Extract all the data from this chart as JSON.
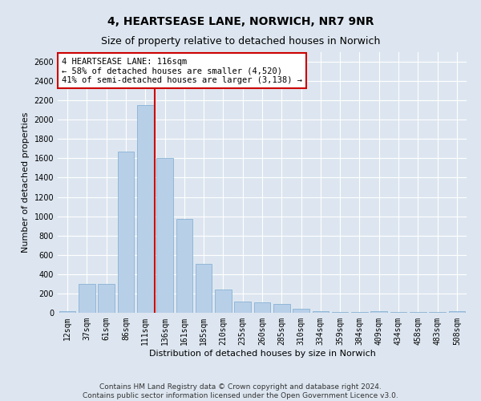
{
  "title": "4, HEARTSEASE LANE, NORWICH, NR7 9NR",
  "subtitle": "Size of property relative to detached houses in Norwich",
  "xlabel": "Distribution of detached houses by size in Norwich",
  "ylabel": "Number of detached properties",
  "categories": [
    "12sqm",
    "37sqm",
    "61sqm",
    "86sqm",
    "111sqm",
    "136sqm",
    "161sqm",
    "185sqm",
    "210sqm",
    "235sqm",
    "260sqm",
    "285sqm",
    "310sqm",
    "334sqm",
    "359sqm",
    "384sqm",
    "409sqm",
    "434sqm",
    "458sqm",
    "483sqm",
    "508sqm"
  ],
  "values": [
    20,
    300,
    300,
    1670,
    2150,
    1600,
    970,
    510,
    245,
    120,
    110,
    95,
    40,
    15,
    10,
    8,
    15,
    8,
    5,
    5,
    20
  ],
  "bar_color": "#b8cfe8",
  "bar_edge_color": "#7aaad0",
  "background_color": "#dde6f0",
  "grid_color": "#ffffff",
  "annotation_box_color": "#ffffff",
  "annotation_box_edge": "#cc0000",
  "vline_color": "#cc0000",
  "vline_x_index": 4,
  "vline_x_offset": 0.5,
  "annotation_line1": "4 HEARTSEASE LANE: 116sqm",
  "annotation_line2": "← 58% of detached houses are smaller (4,520)",
  "annotation_line3": "41% of semi-detached houses are larger (3,138) →",
  "footer1": "Contains HM Land Registry data © Crown copyright and database right 2024.",
  "footer2": "Contains public sector information licensed under the Open Government Licence v3.0.",
  "ylim": [
    0,
    2700
  ],
  "yticks": [
    0,
    200,
    400,
    600,
    800,
    1000,
    1200,
    1400,
    1600,
    1800,
    2000,
    2200,
    2400,
    2600
  ],
  "title_fontsize": 10,
  "subtitle_fontsize": 9,
  "axis_label_fontsize": 8,
  "tick_fontsize": 7,
  "annotation_fontsize": 7.5,
  "footer_fontsize": 6.5
}
